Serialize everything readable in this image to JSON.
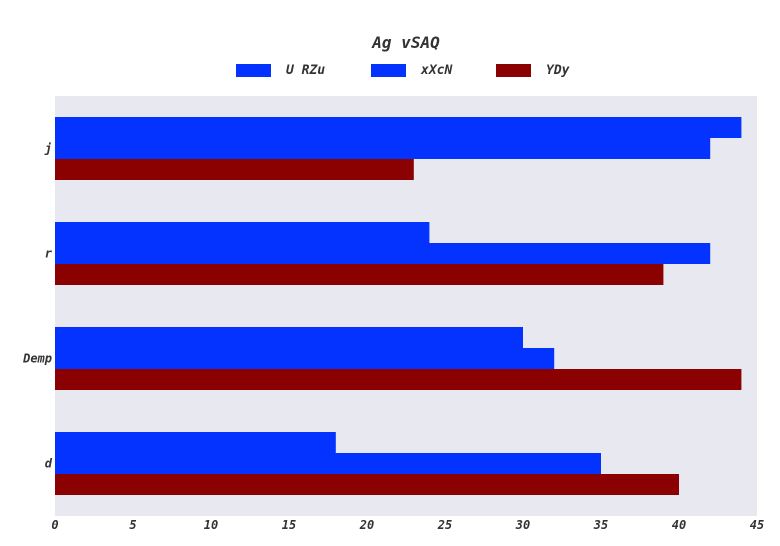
{
  "chart_data": {
    "type": "bar",
    "orientation": "horizontal",
    "title": "Ag vSAQ",
    "xlabel": "",
    "ylabel": "",
    "categories": [
      "j",
      "r",
      "Demp",
      "d"
    ],
    "series": [
      {
        "name": "U RZu",
        "color": "#0433ff",
        "values": [
          44,
          24,
          30,
          18
        ]
      },
      {
        "name": "xXcN",
        "color": "#0433ff",
        "values": [
          42,
          42,
          32,
          35
        ]
      },
      {
        "name": "YDy",
        "color": "#8b0000",
        "values": [
          23,
          39,
          44,
          40
        ]
      }
    ],
    "xlim": [
      0,
      45
    ],
    "xticks": [
      "0",
      "5",
      "10",
      "15",
      "20",
      "25",
      "30",
      "35",
      "40",
      "45"
    ],
    "grid": false,
    "legend_position": "top-center",
    "plot_background": "#e8e8f0"
  }
}
